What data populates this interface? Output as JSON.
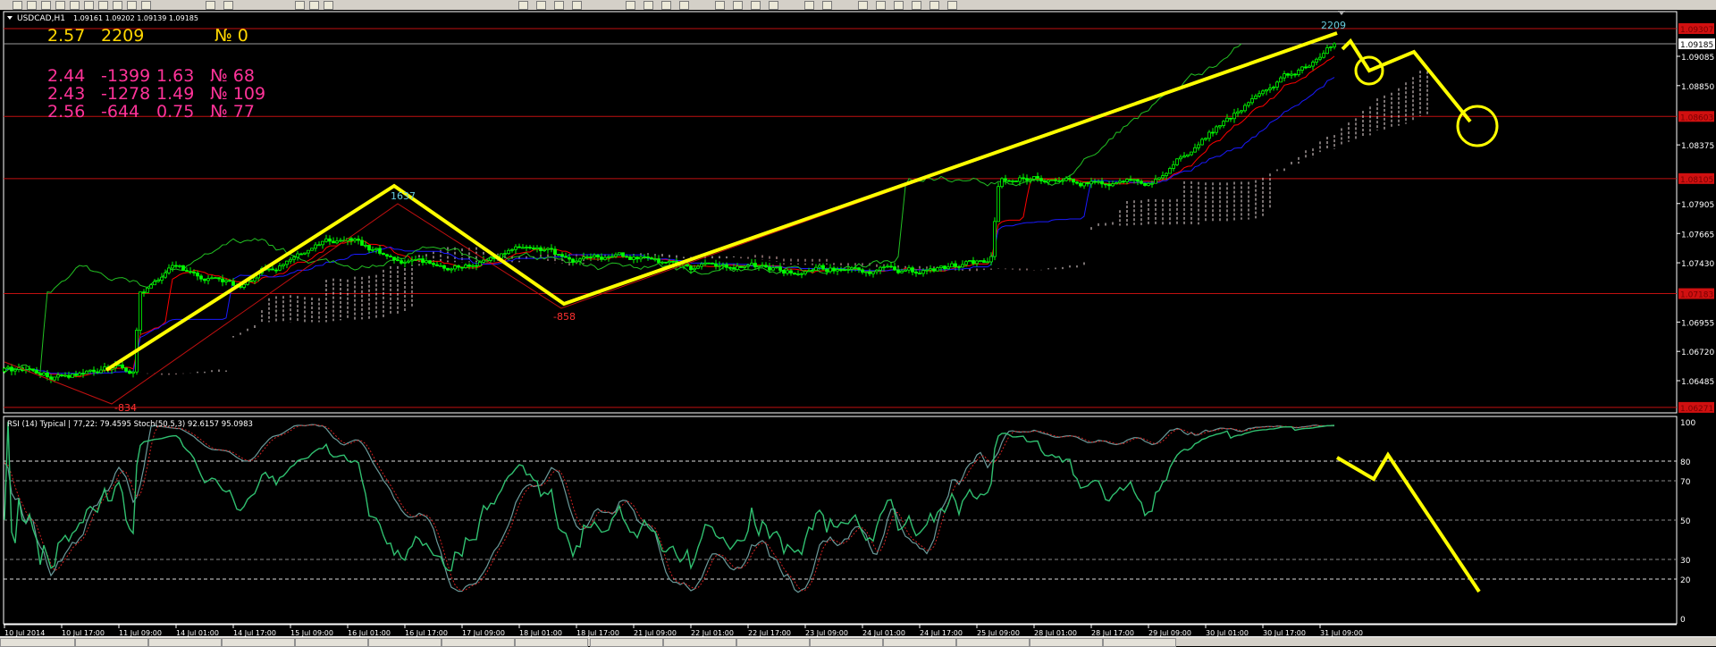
{
  "window": {
    "symbol_header": "USDCAD,H1",
    "ohlc": "1.09161 1.09202 1.09139 1.09185"
  },
  "stats_panel": {
    "top_row": [
      "2.57",
      "2209",
      "№ 0"
    ],
    "rows": [
      [
        "2.44",
        "-1399",
        "1.63",
        "№ 68"
      ],
      [
        "2.43",
        "-1278",
        "1.49",
        "№ 109"
      ],
      [
        "2.56",
        "-644",
        "0.75",
        "№ 77"
      ]
    ]
  },
  "colors": {
    "background": "#000000",
    "bull_candle": "#00ff00",
    "level_line": "#c01010",
    "tenkan": "#ff0000",
    "kijun": "#1a1aff",
    "chikou": "#22c022",
    "cloud": "#f0d8d8",
    "annotation": "#ffff00",
    "stats_top": "#ffd700",
    "stats_rows": "#ff3399",
    "zigzag_label": "#66ccdd",
    "zigzag_label_low": "#ff3030"
  },
  "chart_data": [
    {
      "type": "candlestick",
      "title": "USDCAD,H1",
      "price_axis_ticks": [
        "1.09085",
        "1.08850",
        "1.08375",
        "1.07905",
        "1.07665",
        "1.07430",
        "1.06955",
        "1.06720",
        "1.06485"
      ],
      "level_lines": [
        {
          "price": "1.09307"
        },
        {
          "price": "1.08603"
        },
        {
          "price": "1.08105"
        },
        {
          "price": "1.07183"
        },
        {
          "price": "1.06271"
        }
      ],
      "current_price": "1.09185",
      "time_labels": [
        "10 Jul 2014",
        "10 Jul 17:00",
        "11 Jul 09:00",
        "14 Jul 01:00",
        "14 Jul 17:00",
        "15 Jul 09:00",
        "16 Jul 01:00",
        "16 Jul 17:00",
        "17 Jul 09:00",
        "18 Jul 01:00",
        "18 Jul 17:00",
        "21 Jul 09:00",
        "22 Jul 01:00",
        "22 Jul 17:00",
        "23 Jul 09:00",
        "24 Jul 01:00",
        "24 Jul 17:00",
        "25 Jul 09:00",
        "28 Jul 01:00",
        "28 Jul 17:00",
        "29 Jul 09:00",
        "30 Jul 01:00",
        "30 Jul 17:00",
        "31 Jul 09:00"
      ],
      "approx_close": [
        1.0656,
        1.0651,
        1.066,
        1.0739,
        1.0724,
        1.0747,
        1.0761,
        1.0743,
        1.0739,
        1.0754,
        1.0743,
        1.0745,
        1.0739,
        1.074,
        1.0734,
        1.0739,
        1.0734,
        1.0743,
        1.0813,
        1.0809,
        1.0805,
        1.0848,
        1.0879,
        1.0906
      ],
      "indicators": [
        "Ichimoku cloud",
        "Tenkan-sen",
        "Kijun-sen",
        "Chikou span",
        "ZigZag"
      ],
      "zigzag_labels": [
        "-834",
        "1637",
        "-858",
        "2209"
      ]
    },
    {
      "type": "line",
      "title": "RSI (14) Typical | 77,22: 79.4595  Stoch(50,5,3) 92.6157 95.0983",
      "ylim": [
        0,
        100
      ],
      "y_ticks": [
        "100",
        "80",
        "70",
        "50",
        "30",
        "20",
        "0"
      ],
      "levels": [
        80,
        70,
        50,
        30,
        20
      ],
      "series": [
        {
          "name": "RSI (14) Typical",
          "last": 79.4595
        },
        {
          "name": "Stoch(50,5,3)",
          "last": 92.6157
        },
        {
          "name": "Stoch signal",
          "last": 95.0983
        }
      ]
    }
  ]
}
